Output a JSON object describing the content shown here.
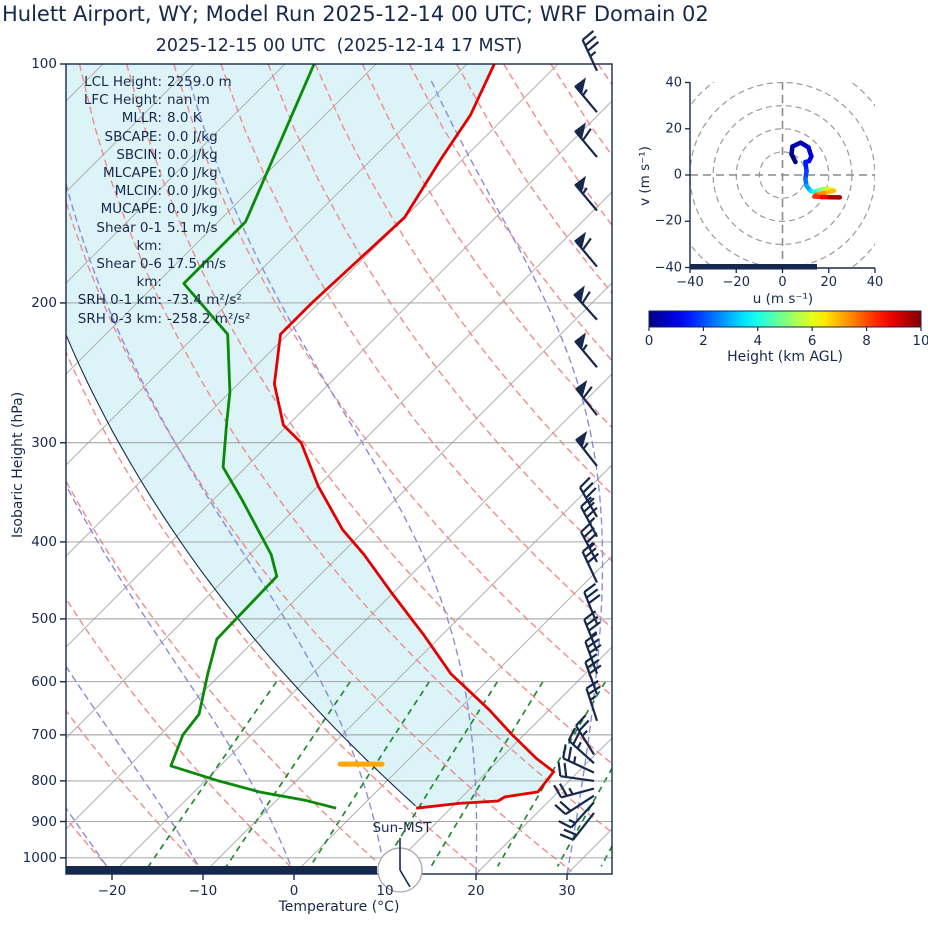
{
  "title": "Hulett Airport, WY; Model Run 2025-12-14 00 UTC; WRF Domain 02",
  "subtitle": "2025-12-15 00 UTC  (2025-12-14 17 MST)",
  "colors": {
    "text_navy": "#16294d",
    "temperature_line": "#e20000",
    "dewpoint_line": "#0a8a0a",
    "parcel_line": "#16294d",
    "cin_fill": "#dcf4f7",
    "isotherm": "#b0b0b0",
    "dry_adiabat": "#f38a8a",
    "moist_adiabat": "#8a8ade",
    "mixing_line": "#1f8b2c",
    "gridline": "#9a9a9a",
    "lcl_marker": "#ffa500",
    "barb": "#16294d"
  },
  "skewt": {
    "ylabel": "Isobaric Height (hPa)",
    "xlabel": "Temperature (°C)",
    "x_ticks": [
      -20,
      -10,
      0,
      10,
      20,
      30
    ],
    "y_ticks": [
      100,
      200,
      300,
      400,
      500,
      600,
      700,
      800,
      900,
      1000
    ],
    "sun_label": "Sun-MST",
    "stats": [
      {
        "label": "LCL Height:",
        "value": "2259.0 m"
      },
      {
        "label": "LFC Height:",
        "value": "nan m"
      },
      {
        "label": "MLLR:",
        "value": "8.0 K"
      },
      {
        "label": "SBCAPE:",
        "value": "0.0 J/kg"
      },
      {
        "label": "SBCIN:",
        "value": "0.0 J/kg"
      },
      {
        "label": "MLCAPE:",
        "value": "0.0 J/kg"
      },
      {
        "label": "MLCIN:",
        "value": "0.0 J/kg"
      },
      {
        "label": "MUCAPE:",
        "value": "0.0 J/kg"
      },
      {
        "label": "Shear 0-1 km:",
        "value": "5.1 m/s"
      },
      {
        "label": "Shear 0-6 km:",
        "value": "17.5 m/s"
      },
      {
        "label": "SRH 0-1 km:",
        "value": "-73.4 m²/s²"
      },
      {
        "label": "SRH 0-3 km:",
        "value": "-258.2 m²/s²"
      }
    ]
  },
  "hodograph": {
    "xlabel": "u (m s⁻¹)",
    "ylabel": "v (m s⁻¹)",
    "x_ticks": [
      -40,
      -20,
      0,
      20,
      40
    ],
    "y_ticks": [
      40,
      20,
      0,
      -20,
      -40
    ],
    "ring_radii": [
      10,
      20,
      30,
      40,
      50
    ]
  },
  "colorbar": {
    "label": "Height (km AGL)",
    "ticks": [
      0,
      2,
      4,
      6,
      8,
      10
    ]
  },
  "chart_data": {
    "type": "skewt-log-p-sounding",
    "pressure_range_hPa": [
      100,
      1048
    ],
    "temperature_axis_range_C": [
      -25,
      35
    ],
    "temperature_profile_p_T": [
      [
        100,
        -67
      ],
      [
        116,
        -64
      ],
      [
        131,
        -62.5
      ],
      [
        156,
        -60
      ],
      [
        200,
        -60.8
      ],
      [
        219,
        -60.8
      ],
      [
        253,
        -56
      ],
      [
        285,
        -50.5
      ],
      [
        300,
        -46.6
      ],
      [
        340,
        -40
      ],
      [
        386,
        -32.5
      ],
      [
        415,
        -27.4
      ],
      [
        462,
        -20.4
      ],
      [
        524,
        -12
      ],
      [
        586,
        -4.8
      ],
      [
        650,
        3.3
      ],
      [
        700,
        8.7
      ],
      [
        750,
        14
      ],
      [
        779,
        17.3
      ],
      [
        826,
        17.8
      ],
      [
        838,
        14.7
      ],
      [
        848,
        14.4
      ],
      [
        854,
        10.4
      ],
      [
        866,
        6.2
      ]
    ],
    "dewpoint_profile_p_Td": [
      [
        100,
        -86.8
      ],
      [
        158,
        -77
      ],
      [
        189,
        -77
      ],
      [
        219,
        -66.6
      ],
      [
        259,
        -60
      ],
      [
        283,
        -57
      ],
      [
        322,
        -52.5
      ],
      [
        353,
        -47
      ],
      [
        415,
        -37.6
      ],
      [
        442,
        -34.6
      ],
      [
        530,
        -34.3
      ],
      [
        586,
        -31.5
      ],
      [
        659,
        -28
      ],
      [
        700,
        -27.5
      ],
      [
        766,
        -25.4
      ],
      [
        800,
        -18.5
      ],
      [
        827,
        -12.6
      ],
      [
        846,
        -6.9
      ],
      [
        866,
        -2.6
      ]
    ],
    "parcel_profile": {
      "theta_K": 291.3,
      "surface_p_hPa": 866,
      "surface_T_C": 6.2
    },
    "lcl_marker": {
      "pressure_hPa": 762,
      "T_from_C": -7.0,
      "T_to_C": -2.4
    },
    "background": {
      "isotherms_C": {
        "start": -120,
        "end": 40,
        "step": 10
      },
      "dry_adiabats_K": {
        "start": 250,
        "end": 440,
        "step": 10
      },
      "moist_adiabats_startT_C": {
        "start": -80,
        "end": 40,
        "step": 10
      },
      "mixing_ratios_g_kg": [
        1,
        2,
        4,
        7,
        10,
        16,
        24,
        32,
        40
      ]
    },
    "wind_barbs": [
      {
        "p": 102,
        "angle": 115,
        "pennants": 0,
        "full": 3,
        "half": 1
      },
      {
        "p": 115,
        "angle": 130,
        "pennants": 1,
        "full": 0,
        "half": 1
      },
      {
        "p": 131,
        "angle": 130,
        "pennants": 1,
        "full": 1,
        "half": 0
      },
      {
        "p": 153,
        "angle": 130,
        "pennants": 1,
        "full": 0,
        "half": 1
      },
      {
        "p": 180,
        "angle": 130,
        "pennants": 1,
        "full": 1,
        "half": 0
      },
      {
        "p": 210,
        "angle": 132,
        "pennants": 1,
        "full": 1,
        "half": 0
      },
      {
        "p": 241,
        "angle": 130,
        "pennants": 1,
        "full": 0,
        "half": 1
      },
      {
        "p": 277,
        "angle": 128,
        "pennants": 1,
        "full": 1,
        "half": 0
      },
      {
        "p": 321,
        "angle": 128,
        "pennants": 1,
        "full": 0,
        "half": 1
      },
      {
        "p": 372,
        "angle": 120,
        "pennants": 0,
        "full": 3,
        "half": 1
      },
      {
        "p": 394,
        "angle": 118,
        "pennants": 0,
        "full": 3,
        "half": 1
      },
      {
        "p": 424,
        "angle": 118,
        "pennants": 0,
        "full": 3,
        "half": 1
      },
      {
        "p": 450,
        "angle": 115,
        "pennants": 0,
        "full": 3,
        "half": 0
      },
      {
        "p": 507,
        "angle": 112,
        "pennants": 0,
        "full": 3,
        "half": 0
      },
      {
        "p": 549,
        "angle": 112,
        "pennants": 0,
        "full": 3,
        "half": 1
      },
      {
        "p": 586,
        "angle": 110,
        "pennants": 0,
        "full": 3,
        "half": 0
      },
      {
        "p": 622,
        "angle": 110,
        "pennants": 0,
        "full": 3,
        "half": 0
      },
      {
        "p": 672,
        "angle": 108,
        "pennants": 0,
        "full": 2,
        "half": 1
      },
      {
        "p": 741,
        "angle": 122,
        "pennants": 0,
        "full": 2,
        "half": 1
      },
      {
        "p": 760,
        "angle": 138,
        "pennants": 0,
        "full": 2,
        "half": 1
      },
      {
        "p": 781,
        "angle": 155,
        "pennants": 0,
        "full": 2,
        "half": 1
      },
      {
        "p": 800,
        "angle": 172,
        "pennants": 0,
        "full": 2,
        "half": 0
      },
      {
        "p": 818,
        "angle": 195,
        "pennants": 0,
        "full": 2,
        "half": 1
      },
      {
        "p": 835,
        "angle": 213,
        "pennants": 0,
        "full": 2,
        "half": 0
      },
      {
        "p": 851,
        "angle": 228,
        "pennants": 0,
        "full": 1,
        "half": 1
      },
      {
        "p": 878,
        "angle": 232,
        "pennants": 0,
        "full": 2,
        "half": 0
      }
    ],
    "hodograph_trace_u_v_heightkm": [
      [
        5.6,
        5.6,
        0.0
      ],
      [
        3.9,
        9.0,
        0.15
      ],
      [
        4.3,
        12.3,
        0.3
      ],
      [
        7.8,
        14.0,
        0.5
      ],
      [
        11.2,
        12.0,
        0.7
      ],
      [
        12.5,
        8.0,
        0.9
      ],
      [
        11.5,
        6.0,
        1.1
      ],
      [
        9.9,
        5.6,
        1.3
      ],
      [
        10.4,
        1.7,
        1.7
      ],
      [
        9.9,
        -1.7,
        2.1
      ],
      [
        10.4,
        -4.7,
        2.6
      ],
      [
        12.1,
        -6.8,
        3.1
      ],
      [
        13.4,
        -7.3,
        3.7
      ],
      [
        15.6,
        -6.8,
        4.3
      ],
      [
        17.0,
        -6.2,
        4.9
      ],
      [
        19.0,
        -5.9,
        5.5
      ],
      [
        21.0,
        -6.3,
        6.1
      ],
      [
        22.3,
        -6.8,
        6.6
      ],
      [
        18.0,
        -7.8,
        7.1
      ],
      [
        14.5,
        -8.6,
        7.6
      ],
      [
        13.8,
        -9.3,
        8.0
      ],
      [
        17.0,
        -9.5,
        8.6
      ],
      [
        20.5,
        -9.6,
        9.2
      ],
      [
        24.8,
        -9.7,
        10.0
      ]
    ],
    "hodograph_axis_range": [
      -40,
      40
    ],
    "colorbar_height_range_km": [
      0,
      10
    ],
    "indices": {
      "LCL_height_m": 2259.0,
      "LFC_height_m": "nan",
      "MLLR_K": 8.0,
      "SBCAPE_J_kg": 0.0,
      "SBCIN_J_kg": 0.0,
      "MLCAPE_J_kg": 0.0,
      "MLCIN_J_kg": 0.0,
      "MUCAPE_J_kg": 0.0,
      "shear_0_1km_ms": 5.1,
      "shear_0_6km_ms": 17.5,
      "SRH_0_1km_m2s2": -73.4,
      "SRH_0_3km_m2s2": -258.2
    }
  }
}
